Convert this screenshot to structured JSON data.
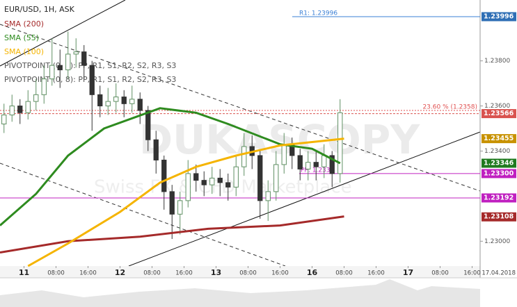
{
  "chart_data": {
    "type": "candlestick",
    "title": "EUR/USD, 1H, ASK",
    "watermark": "DUKASCOPY",
    "watermark_sub": "Swiss FX & CFD Marketplace",
    "date_label": "17.04.2018",
    "pivot_legends": [
      "PIVOTPOINT (0, 9): PP, R1, S1, R2, S2, R3, S3",
      "PIVOTPOINT (0, 8): PP, R1, S1, R2, S2, R3, S3"
    ],
    "up_color": "#5f8f62",
    "down_color": "#333333",
    "xlim": [
      0,
      120
    ],
    "xticks": [
      {
        "value": 6,
        "label": "11"
      },
      {
        "value": 14,
        "label": "08:00"
      },
      {
        "value": 22,
        "label": "16:00"
      },
      {
        "value": 30,
        "label": "12"
      },
      {
        "value": 38,
        "label": "08:00"
      },
      {
        "value": 46,
        "label": "16:00"
      },
      {
        "value": 54,
        "label": "13"
      },
      {
        "value": 62,
        "label": "08:00"
      },
      {
        "value": 70,
        "label": "16:00"
      },
      {
        "value": 78,
        "label": "16"
      },
      {
        "value": 86,
        "label": "08:00"
      },
      {
        "value": 94,
        "label": "16:00"
      },
      {
        "value": 102,
        "label": "17"
      },
      {
        "value": 110,
        "label": "08:00"
      },
      {
        "value": 118,
        "label": "16:00"
      }
    ],
    "ylim": [
      1.2289,
      1.2407
    ],
    "yticks": [
      {
        "value": 1.238,
        "label": "1.23800"
      },
      {
        "value": 1.236,
        "label": "1.23600"
      },
      {
        "value": 1.234,
        "label": "1.23400"
      },
      {
        "value": 1.23,
        "label": "1.23000"
      }
    ],
    "grid": false,
    "x": [
      1,
      3,
      5,
      7,
      9,
      11,
      13,
      15,
      17,
      19,
      21,
      23,
      25,
      27,
      29,
      31,
      33,
      35,
      37,
      39,
      41,
      43,
      45,
      47,
      49,
      51,
      53,
      55,
      57,
      59,
      61,
      63,
      65,
      67,
      69,
      71,
      73,
      75,
      77,
      79,
      81,
      83,
      85
    ],
    "open": [
      1.2352,
      1.2356,
      1.236,
      1.2357,
      1.2362,
      1.2365,
      1.2372,
      1.2378,
      1.2376,
      1.2383,
      1.2384,
      1.2378,
      1.2365,
      1.236,
      1.2362,
      1.2364,
      1.2361,
      1.2363,
      1.2358,
      1.2345,
      1.2336,
      1.2322,
      1.2312,
      1.2318,
      1.233,
      1.2327,
      1.2325,
      1.2328,
      1.2326,
      1.2324,
      1.2333,
      1.2342,
      1.2338,
      1.2318,
      1.2322,
      1.2334,
      1.2343,
      1.2338,
      1.2332,
      1.2335,
      1.2333,
      1.2338,
      1.233
    ],
    "high": [
      1.2361,
      1.2365,
      1.2363,
      1.2367,
      1.2372,
      1.2378,
      1.239,
      1.2385,
      1.2393,
      1.239,
      1.2387,
      1.238,
      1.2369,
      1.2368,
      1.237,
      1.2367,
      1.2369,
      1.2366,
      1.236,
      1.2349,
      1.2338,
      1.2325,
      1.2322,
      1.2336,
      1.2334,
      1.2331,
      1.2333,
      1.2332,
      1.233,
      1.2338,
      1.2348,
      1.2347,
      1.234,
      1.2327,
      1.234,
      1.2348,
      1.2346,
      1.2341,
      1.234,
      1.234,
      1.2343,
      1.234,
      1.2363
    ],
    "low": [
      1.2348,
      1.2353,
      1.2352,
      1.2354,
      1.2358,
      1.2361,
      1.2369,
      1.2368,
      1.2372,
      1.2377,
      1.2372,
      1.2349,
      1.2355,
      1.2356,
      1.2357,
      1.2355,
      1.2357,
      1.2352,
      1.234,
      1.233,
      1.2314,
      1.2301,
      1.2303,
      1.2315,
      1.2322,
      1.232,
      1.2321,
      1.232,
      1.2318,
      1.232,
      1.2329,
      1.2332,
      1.231,
      1.2309,
      1.2318,
      1.233,
      1.2332,
      1.2327,
      1.2327,
      1.2327,
      1.2328,
      1.2324,
      1.2326
    ],
    "close": [
      1.2356,
      1.236,
      1.2357,
      1.2362,
      1.2365,
      1.2372,
      1.2378,
      1.2376,
      1.2383,
      1.2384,
      1.2378,
      1.2365,
      1.236,
      1.2362,
      1.2364,
      1.2361,
      1.2363,
      1.2358,
      1.2345,
      1.2336,
      1.2322,
      1.2312,
      1.2318,
      1.233,
      1.2327,
      1.2325,
      1.2328,
      1.2326,
      1.2324,
      1.2333,
      1.2342,
      1.2338,
      1.2318,
      1.2322,
      1.2334,
      1.2343,
      1.2338,
      1.2332,
      1.2335,
      1.2333,
      1.2338,
      1.233,
      1.2357
    ],
    "series": [
      {
        "name": "SMA (200)",
        "color": "#a52a2a",
        "x": [
          0,
          17,
          35,
          52,
          70,
          78,
          86
        ],
        "values": [
          1.2295,
          1.23,
          1.2302,
          1.23055,
          1.2307,
          1.2309,
          1.2311
        ]
      },
      {
        "name": "SMA (55)",
        "color": "#2e8b1f",
        "x": [
          0,
          9,
          17,
          26,
          40,
          49,
          57,
          70,
          78,
          85
        ],
        "values": [
          1.2307,
          1.2321,
          1.2338,
          1.235,
          1.2359,
          1.2357,
          1.2352,
          1.2343,
          1.2341,
          1.23346
        ]
      },
      {
        "name": "SMA (100)",
        "color": "#f5b400",
        "x": [
          7,
          17,
          30,
          40,
          49,
          59,
          70,
          86
        ],
        "values": [
          1.2289,
          1.2299,
          1.2313,
          1.2326,
          1.2333,
          1.2338,
          1.23425,
          1.23455
        ]
      }
    ],
    "levels": [
      {
        "name": "R1: 1.23996",
        "value": 1.23996,
        "color": "#3a7fd5"
      },
      {
        "name": "23.60 % (1.2358)",
        "value": 1.2358,
        "color": "#e05050"
      },
      {
        "name": "PP: 1.2330",
        "value": 1.233,
        "color": "#c020c0"
      },
      {
        "name": "PP",
        "value": 1.23192,
        "color": "#c020c0"
      }
    ],
    "axis_markers": [
      {
        "value": 1.23996,
        "label": "1.23996",
        "color": "#2f6fb5"
      },
      {
        "value": 1.23566,
        "label": "1.23566",
        "color": "#d9534f"
      },
      {
        "value": 1.23455,
        "label": "1.23455",
        "color": "#c89200"
      },
      {
        "value": 1.23346,
        "label": "1.23346",
        "color": "#1f7a1f"
      },
      {
        "value": 1.233,
        "label": "1.23300",
        "color": "#c020c0"
      },
      {
        "value": 1.23192,
        "label": "1.23192",
        "color": "#c020c0"
      },
      {
        "value": 1.23108,
        "label": "1.23108",
        "color": "#a52a2a"
      }
    ]
  }
}
